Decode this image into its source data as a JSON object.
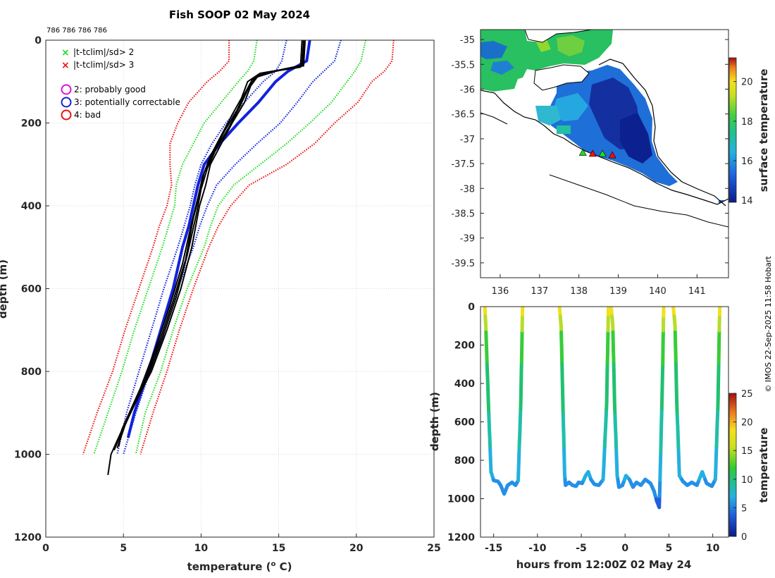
{
  "title": "Fish SOOP 02 May 2024",
  "profile_ids": "786 786 786 786",
  "credit": "© IMOS 22-Sep-2025 11:58 Hobart",
  "legend": {
    "sd2": "|t-tclim|/sd> 2",
    "sd3": "|t-tclim|/sd> 3",
    "flag2": "2: probably good",
    "flag3": "3: potentially correctable",
    "flag4": "4: bad"
  },
  "colors": {
    "sd2": "#22dd22",
    "sd3": "#ee1111",
    "flag2": "#dd11dd",
    "flag3": "#1122dd",
    "flag4": "#ee1111",
    "observed": "#000000",
    "land": "#ffffff"
  },
  "chart_data": [
    {
      "id": "profile",
      "type": "line",
      "xlabel": "temperature (",
      "xlabel_sup": "o",
      "xlabel_tail": " C)",
      "ylabel": "depth (m)",
      "xlim": [
        0,
        25
      ],
      "ylim": [
        0,
        1200
      ],
      "y_reversed": true,
      "grid": true,
      "xticks": [
        "0",
        "5",
        "10",
        "15",
        "20",
        "25"
      ],
      "xtick_values": [
        0,
        5,
        10,
        15,
        20,
        25
      ],
      "yticks": [
        "0",
        "200",
        "400",
        "600",
        "800",
        "1000",
        "1200"
      ],
      "ytick_values": [
        0,
        200,
        400,
        600,
        800,
        1000,
        1200
      ],
      "depths": [
        0,
        50,
        75,
        100,
        150,
        200,
        250,
        300,
        350,
        400,
        450,
        500,
        600,
        700,
        800,
        900,
        1000
      ],
      "envelopes": [
        {
          "name": "clim -3sd",
          "color_key": "sd3",
          "temps": [
            11.8,
            11.8,
            11.2,
            10.4,
            9.2,
            8.5,
            8.0,
            8.0,
            8.1,
            7.8,
            7.3,
            6.9,
            6.0,
            5.1,
            4.3,
            3.3,
            2.4
          ]
        },
        {
          "name": "clim -2sd",
          "color_key": "sd2",
          "temps": [
            13.6,
            13.4,
            13.0,
            12.4,
            11.3,
            10.2,
            9.5,
            8.8,
            8.4,
            8.3,
            7.9,
            7.5,
            6.6,
            5.7,
            4.9,
            4.0,
            3.1
          ]
        },
        {
          "name": "clim -1sd",
          "color_key": "flag3",
          "temps": [
            15.5,
            15.2,
            14.8,
            14.0,
            12.8,
            11.6,
            10.7,
            10.0,
            9.6,
            9.3,
            8.9,
            8.5,
            7.6,
            6.8,
            6.0,
            5.2,
            4.6
          ]
        },
        {
          "name": "clim +1sd",
          "color_key": "flag3",
          "temps": [
            19.0,
            18.6,
            17.9,
            17.2,
            16.2,
            15.1,
            13.6,
            12.2,
            11.0,
            10.4,
            9.9,
            9.5,
            8.5,
            7.6,
            6.7,
            5.8,
            5.0
          ]
        },
        {
          "name": "clim +2sd",
          "color_key": "sd2",
          "temps": [
            20.6,
            20.3,
            19.9,
            19.4,
            18.4,
            17.0,
            15.5,
            13.8,
            12.1,
            11.1,
            10.6,
            10.2,
            9.1,
            8.2,
            7.4,
            6.4,
            5.8
          ]
        },
        {
          "name": "clim +3sd",
          "color_key": "sd3",
          "temps": [
            22.4,
            22.3,
            21.8,
            21.0,
            20.1,
            18.6,
            17.3,
            15.5,
            13.1,
            11.9,
            11.1,
            10.5,
            9.5,
            8.6,
            7.8,
            6.9,
            6.1
          ]
        }
      ],
      "flag3_profile": {
        "name": "flag 3 profile",
        "color_key": "flag3",
        "depths": [
          0,
          50,
          75,
          100,
          150,
          200,
          250,
          300,
          350,
          400,
          450,
          500,
          600,
          700,
          800,
          900,
          960
        ],
        "temps": [
          17.0,
          16.8,
          15.6,
          14.8,
          13.7,
          12.4,
          11.2,
          10.2,
          9.8,
          9.5,
          9.2,
          8.8,
          8.2,
          7.4,
          6.6,
          5.7,
          5.3
        ]
      },
      "observed_profiles": [
        {
          "depths": [
            0,
            60,
            70,
            85,
            110,
            150,
            200,
            250,
            300,
            350,
            400,
            500,
            600,
            700,
            800,
            900,
            1000,
            1050
          ],
          "temps": [
            16.6,
            16.6,
            15.3,
            13.7,
            13.2,
            12.8,
            12.0,
            11.3,
            10.6,
            10.3,
            9.9,
            9.4,
            8.7,
            7.8,
            6.8,
            5.4,
            4.2,
            4.0
          ]
        },
        {
          "depths": [
            0,
            60,
            75,
            90,
            120,
            160,
            210,
            260,
            310,
            360,
            420,
            520,
            620,
            720,
            820,
            920,
            990
          ],
          "temps": [
            16.6,
            16.5,
            14.8,
            13.5,
            13.0,
            12.5,
            11.8,
            11.0,
            10.4,
            10.0,
            9.7,
            9.1,
            8.4,
            7.5,
            6.5,
            5.2,
            4.4
          ]
        },
        {
          "depths": [
            0,
            65,
            78,
            95,
            130,
            170,
            220,
            270,
            320,
            370,
            430,
            530,
            630,
            730,
            830,
            930,
            985
          ],
          "temps": [
            16.5,
            16.4,
            14.2,
            13.3,
            12.8,
            12.3,
            11.5,
            10.8,
            10.2,
            9.9,
            9.5,
            9.0,
            8.2,
            7.3,
            6.3,
            5.1,
            4.6
          ]
        },
        {
          "depths": [
            0,
            62,
            80,
            100,
            140,
            180,
            230,
            280,
            330,
            380,
            440,
            540,
            640,
            740,
            840,
            940,
            980
          ],
          "temps": [
            16.7,
            16.6,
            13.8,
            13.0,
            12.6,
            12.0,
            11.3,
            10.6,
            10.1,
            9.8,
            9.4,
            8.8,
            8.0,
            7.1,
            6.1,
            4.9,
            4.7
          ]
        }
      ]
    },
    {
      "id": "map",
      "type": "heatmap",
      "xlim": [
        135.5,
        141.8
      ],
      "ylim": [
        -39.8,
        -34.8
      ],
      "xticks": [
        "136",
        "137",
        "138",
        "139",
        "140",
        "141"
      ],
      "xtick_values": [
        136,
        137,
        138,
        139,
        140,
        141
      ],
      "yticks": [
        "-35",
        "-35.5",
        "-36",
        "-36.5",
        "-37",
        "-37.5",
        "-38",
        "-38.5",
        "-39",
        "-39.5"
      ],
      "ytick_values": [
        -35,
        -35.5,
        -36,
        -36.5,
        -37,
        -37.5,
        -38,
        -38.5,
        -39,
        -39.5
      ],
      "colorbar_label": "surface temperature",
      "colorbar_range": [
        13.9,
        21.2
      ],
      "colorbar_ticks": [
        "14",
        "16",
        "18",
        "20"
      ],
      "colorbar_tick_values": [
        14,
        16,
        18,
        20
      ],
      "profile_locations": [
        {
          "lon": 138.1,
          "lat": -37.28,
          "color_key": "sd2"
        },
        {
          "lon": 138.35,
          "lat": -37.3,
          "color_key": "sd3"
        },
        {
          "lon": 138.6,
          "lat": -37.3,
          "color_key": "sd2"
        },
        {
          "lon": 138.85,
          "lat": -37.33,
          "color_key": "sd3"
        }
      ]
    },
    {
      "id": "timeseries",
      "type": "scatter",
      "xlabel": "hours from 12:00Z 02 May 24",
      "ylabel": "depth (m)",
      "xlim": [
        -16.5,
        11.8
      ],
      "ylim": [
        0,
        1200
      ],
      "y_reversed": true,
      "xticks": [
        "-15",
        "-10",
        "-5",
        "0",
        "5",
        "10"
      ],
      "xtick_values": [
        -15,
        -10,
        -5,
        0,
        5,
        10
      ],
      "yticks": [
        "0",
        "200",
        "400",
        "600",
        "800",
        "1000",
        "1200"
      ],
      "ytick_values": [
        0,
        200,
        400,
        600,
        800,
        1000,
        1200
      ],
      "colorbar_label": "temperature",
      "colorbar_range": [
        0,
        25
      ],
      "colorbar_ticks": [
        "0",
        "5",
        "10",
        "15",
        "20",
        "25"
      ],
      "colorbar_tick_values": [
        0,
        5,
        10,
        15,
        20,
        25
      ],
      "track": [
        [
          -16.0,
          0
        ],
        [
          -15.9,
          100
        ],
        [
          -15.6,
          500
        ],
        [
          -15.3,
          860
        ],
        [
          -15.0,
          905
        ],
        [
          -14.5,
          910
        ],
        [
          -14.2,
          930
        ],
        [
          -13.8,
          975
        ],
        [
          -13.4,
          930
        ],
        [
          -12.9,
          915
        ],
        [
          -12.5,
          930
        ],
        [
          -12.2,
          905
        ],
        [
          -11.9,
          500
        ],
        [
          -11.7,
          0
        ],
        null,
        [
          -7.5,
          0
        ],
        [
          -7.3,
          100
        ],
        [
          -7.1,
          500
        ],
        [
          -6.9,
          870
        ],
        [
          -6.8,
          930
        ],
        [
          -6.4,
          915
        ],
        [
          -6.0,
          930
        ],
        [
          -5.6,
          935
        ],
        [
          -5.3,
          915
        ],
        [
          -4.9,
          920
        ],
        [
          -4.5,
          880
        ],
        [
          -4.2,
          860
        ],
        [
          -3.9,
          900
        ],
        [
          -3.5,
          925
        ],
        [
          -3.0,
          930
        ],
        [
          -2.5,
          900
        ],
        [
          -2.1,
          500
        ],
        [
          -1.9,
          0
        ],
        null,
        [
          -1.6,
          0
        ],
        [
          -1.4,
          100
        ],
        [
          -1.2,
          500
        ],
        [
          -0.9,
          880
        ],
        [
          -0.7,
          940
        ],
        [
          -0.3,
          930
        ],
        [
          0.1,
          880
        ],
        [
          0.5,
          900
        ],
        [
          0.9,
          940
        ],
        [
          1.3,
          915
        ],
        [
          1.8,
          930
        ],
        [
          2.3,
          900
        ],
        [
          2.9,
          920
        ],
        [
          3.3,
          960
        ],
        [
          3.6,
          1010
        ],
        [
          3.9,
          1045
        ],
        [
          4.1,
          700
        ],
        [
          4.3,
          300
        ],
        [
          4.4,
          0
        ],
        null,
        [
          5.5,
          0
        ],
        [
          5.7,
          100
        ],
        [
          5.9,
          500
        ],
        [
          6.2,
          880
        ],
        [
          6.6,
          910
        ],
        [
          7.1,
          930
        ],
        [
          7.6,
          915
        ],
        [
          8.2,
          930
        ],
        [
          8.8,
          860
        ],
        [
          9.3,
          920
        ],
        [
          9.9,
          935
        ],
        [
          10.3,
          900
        ],
        [
          10.6,
          500
        ],
        [
          10.8,
          0
        ]
      ]
    }
  ]
}
